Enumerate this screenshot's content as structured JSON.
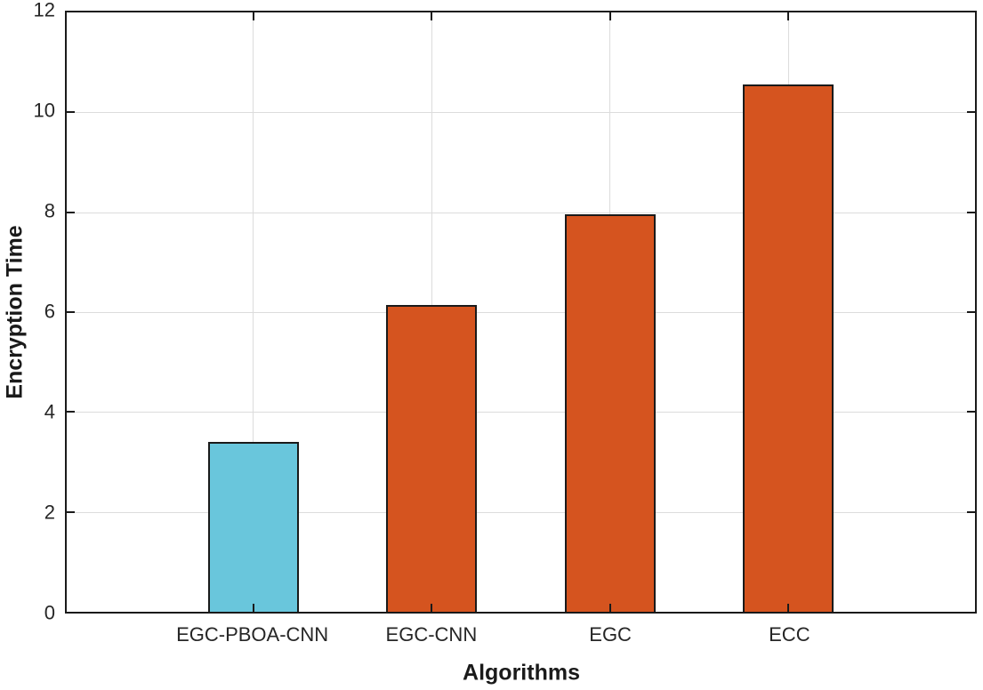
{
  "chart_data": {
    "type": "bar",
    "title": "",
    "xlabel": "Algorithms",
    "ylabel": "Encryption Time",
    "categories": [
      "EGC-PBOA-CNN",
      "EGC-CNN",
      "EGC",
      "ECC"
    ],
    "values": [
      3.4,
      6.15,
      7.95,
      10.55
    ],
    "bar_colors": [
      "#69C6DC",
      "#D5541F",
      "#D5541F",
      "#D5541F"
    ],
    "ylim": [
      0,
      12
    ],
    "yticks": [
      0,
      2,
      4,
      6,
      8,
      10,
      12
    ],
    "grid": true,
    "legend_position": "none",
    "colors": {
      "axis": "#1a1a1a",
      "grid": "#dcdcdc",
      "tick_label": "#262626",
      "background": "#ffffff",
      "bar_edge": "#1a1a1a"
    }
  }
}
